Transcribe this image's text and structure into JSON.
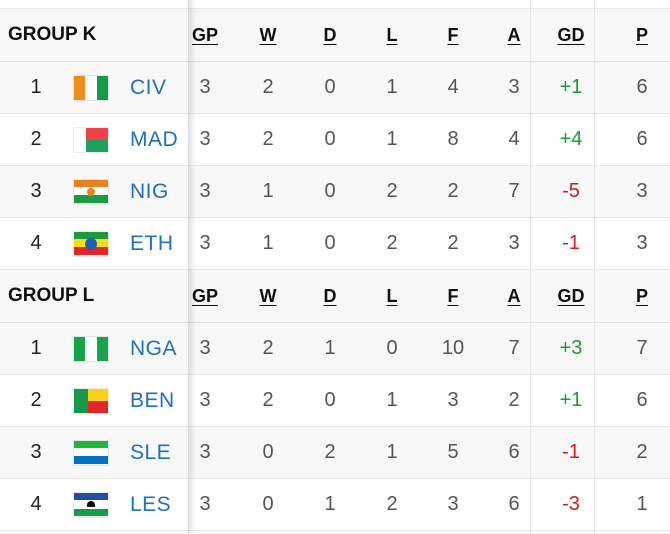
{
  "colors": {
    "team_link": "#1f6fbf",
    "gd_positive": "#1a9b3a",
    "gd_negative": "#cc1f1f",
    "header_bg": "#f7f7f7"
  },
  "columns": [
    "GP",
    "W",
    "D",
    "L",
    "F",
    "A",
    "GD",
    "P"
  ],
  "groups": [
    {
      "title": "GROUP K",
      "rows": [
        {
          "pos": "1",
          "team": "CIV",
          "flag": "ivory-coast-flag-icon",
          "gp": "3",
          "w": "2",
          "d": "0",
          "l": "1",
          "f": "4",
          "a": "3",
          "gd": "+1",
          "p": "6"
        },
        {
          "pos": "2",
          "team": "MAD",
          "flag": "madagascar-flag-icon",
          "gp": "3",
          "w": "2",
          "d": "0",
          "l": "1",
          "f": "8",
          "a": "4",
          "gd": "+4",
          "p": "6"
        },
        {
          "pos": "3",
          "team": "NIG",
          "flag": "niger-flag-icon",
          "gp": "3",
          "w": "1",
          "d": "0",
          "l": "2",
          "f": "2",
          "a": "7",
          "gd": "-5",
          "p": "3"
        },
        {
          "pos": "4",
          "team": "ETH",
          "flag": "ethiopia-flag-icon",
          "gp": "3",
          "w": "1",
          "d": "0",
          "l": "2",
          "f": "2",
          "a": "3",
          "gd": "-1",
          "p": "3"
        }
      ]
    },
    {
      "title": "GROUP L",
      "rows": [
        {
          "pos": "1",
          "team": "NGA",
          "flag": "nigeria-flag-icon",
          "gp": "3",
          "w": "2",
          "d": "1",
          "l": "0",
          "f": "10",
          "a": "7",
          "gd": "+3",
          "p": "7"
        },
        {
          "pos": "2",
          "team": "BEN",
          "flag": "benin-flag-icon",
          "gp": "3",
          "w": "2",
          "d": "0",
          "l": "1",
          "f": "3",
          "a": "2",
          "gd": "+1",
          "p": "6"
        },
        {
          "pos": "3",
          "team": "SLE",
          "flag": "sierra-leone-flag-icon",
          "gp": "3",
          "w": "0",
          "d": "2",
          "l": "1",
          "f": "5",
          "a": "6",
          "gd": "-1",
          "p": "2"
        },
        {
          "pos": "4",
          "team": "LES",
          "flag": "lesotho-flag-icon",
          "gp": "3",
          "w": "0",
          "d": "1",
          "l": "2",
          "f": "3",
          "a": "6",
          "gd": "-3",
          "p": "1"
        }
      ]
    }
  ]
}
